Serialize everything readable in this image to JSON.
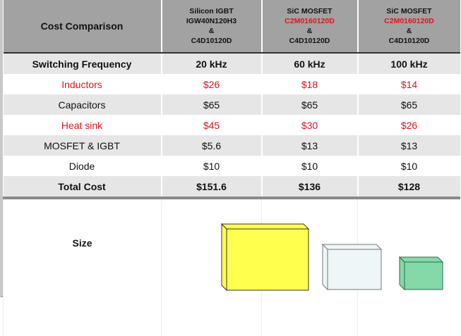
{
  "header": {
    "title": "Cost Comparison",
    "columns": [
      {
        "line1": "Silicon IGBT",
        "line2": "IGW40N120H3",
        "line3": "&",
        "line4": "C4D10120D"
      },
      {
        "line1": "SiC  MOSFET",
        "line2": "C2M0160120D",
        "line3": "&",
        "line4": "C4D10120D"
      },
      {
        "line1": "SiC  MOSFET",
        "line2": "C2M0160120D",
        "line3": "&",
        "line4": "C4D10120D"
      }
    ]
  },
  "rows": [
    {
      "label": "Switching Frequency",
      "values": [
        "20 kHz",
        "60 kHz",
        "100 kHz"
      ]
    },
    {
      "label": "Inductors",
      "values": [
        "$26",
        "$18",
        "$14"
      ]
    },
    {
      "label": "Capacitors",
      "values": [
        "$65",
        "$65",
        "$65"
      ]
    },
    {
      "label": "Heat sink",
      "values": [
        "$45",
        "$30",
        "$26"
      ]
    },
    {
      "label": "MOSFET & IGBT",
      "values": [
        "$5.6",
        "$13",
        "$13"
      ]
    },
    {
      "label": "Diode",
      "values": [
        "$10",
        "$10",
        "$10"
      ]
    },
    {
      "label": "Total Cost",
      "values": [
        "$151.6",
        "$136",
        "$128"
      ]
    }
  ],
  "size": {
    "label": "Size",
    "box_colors": [
      "#ffff4d",
      "#eef6f8",
      "#84d9a8"
    ]
  },
  "colors": {
    "highlight": "#e3131b",
    "header_bg": "#a2a2a2",
    "band": "#e6e6e6"
  }
}
